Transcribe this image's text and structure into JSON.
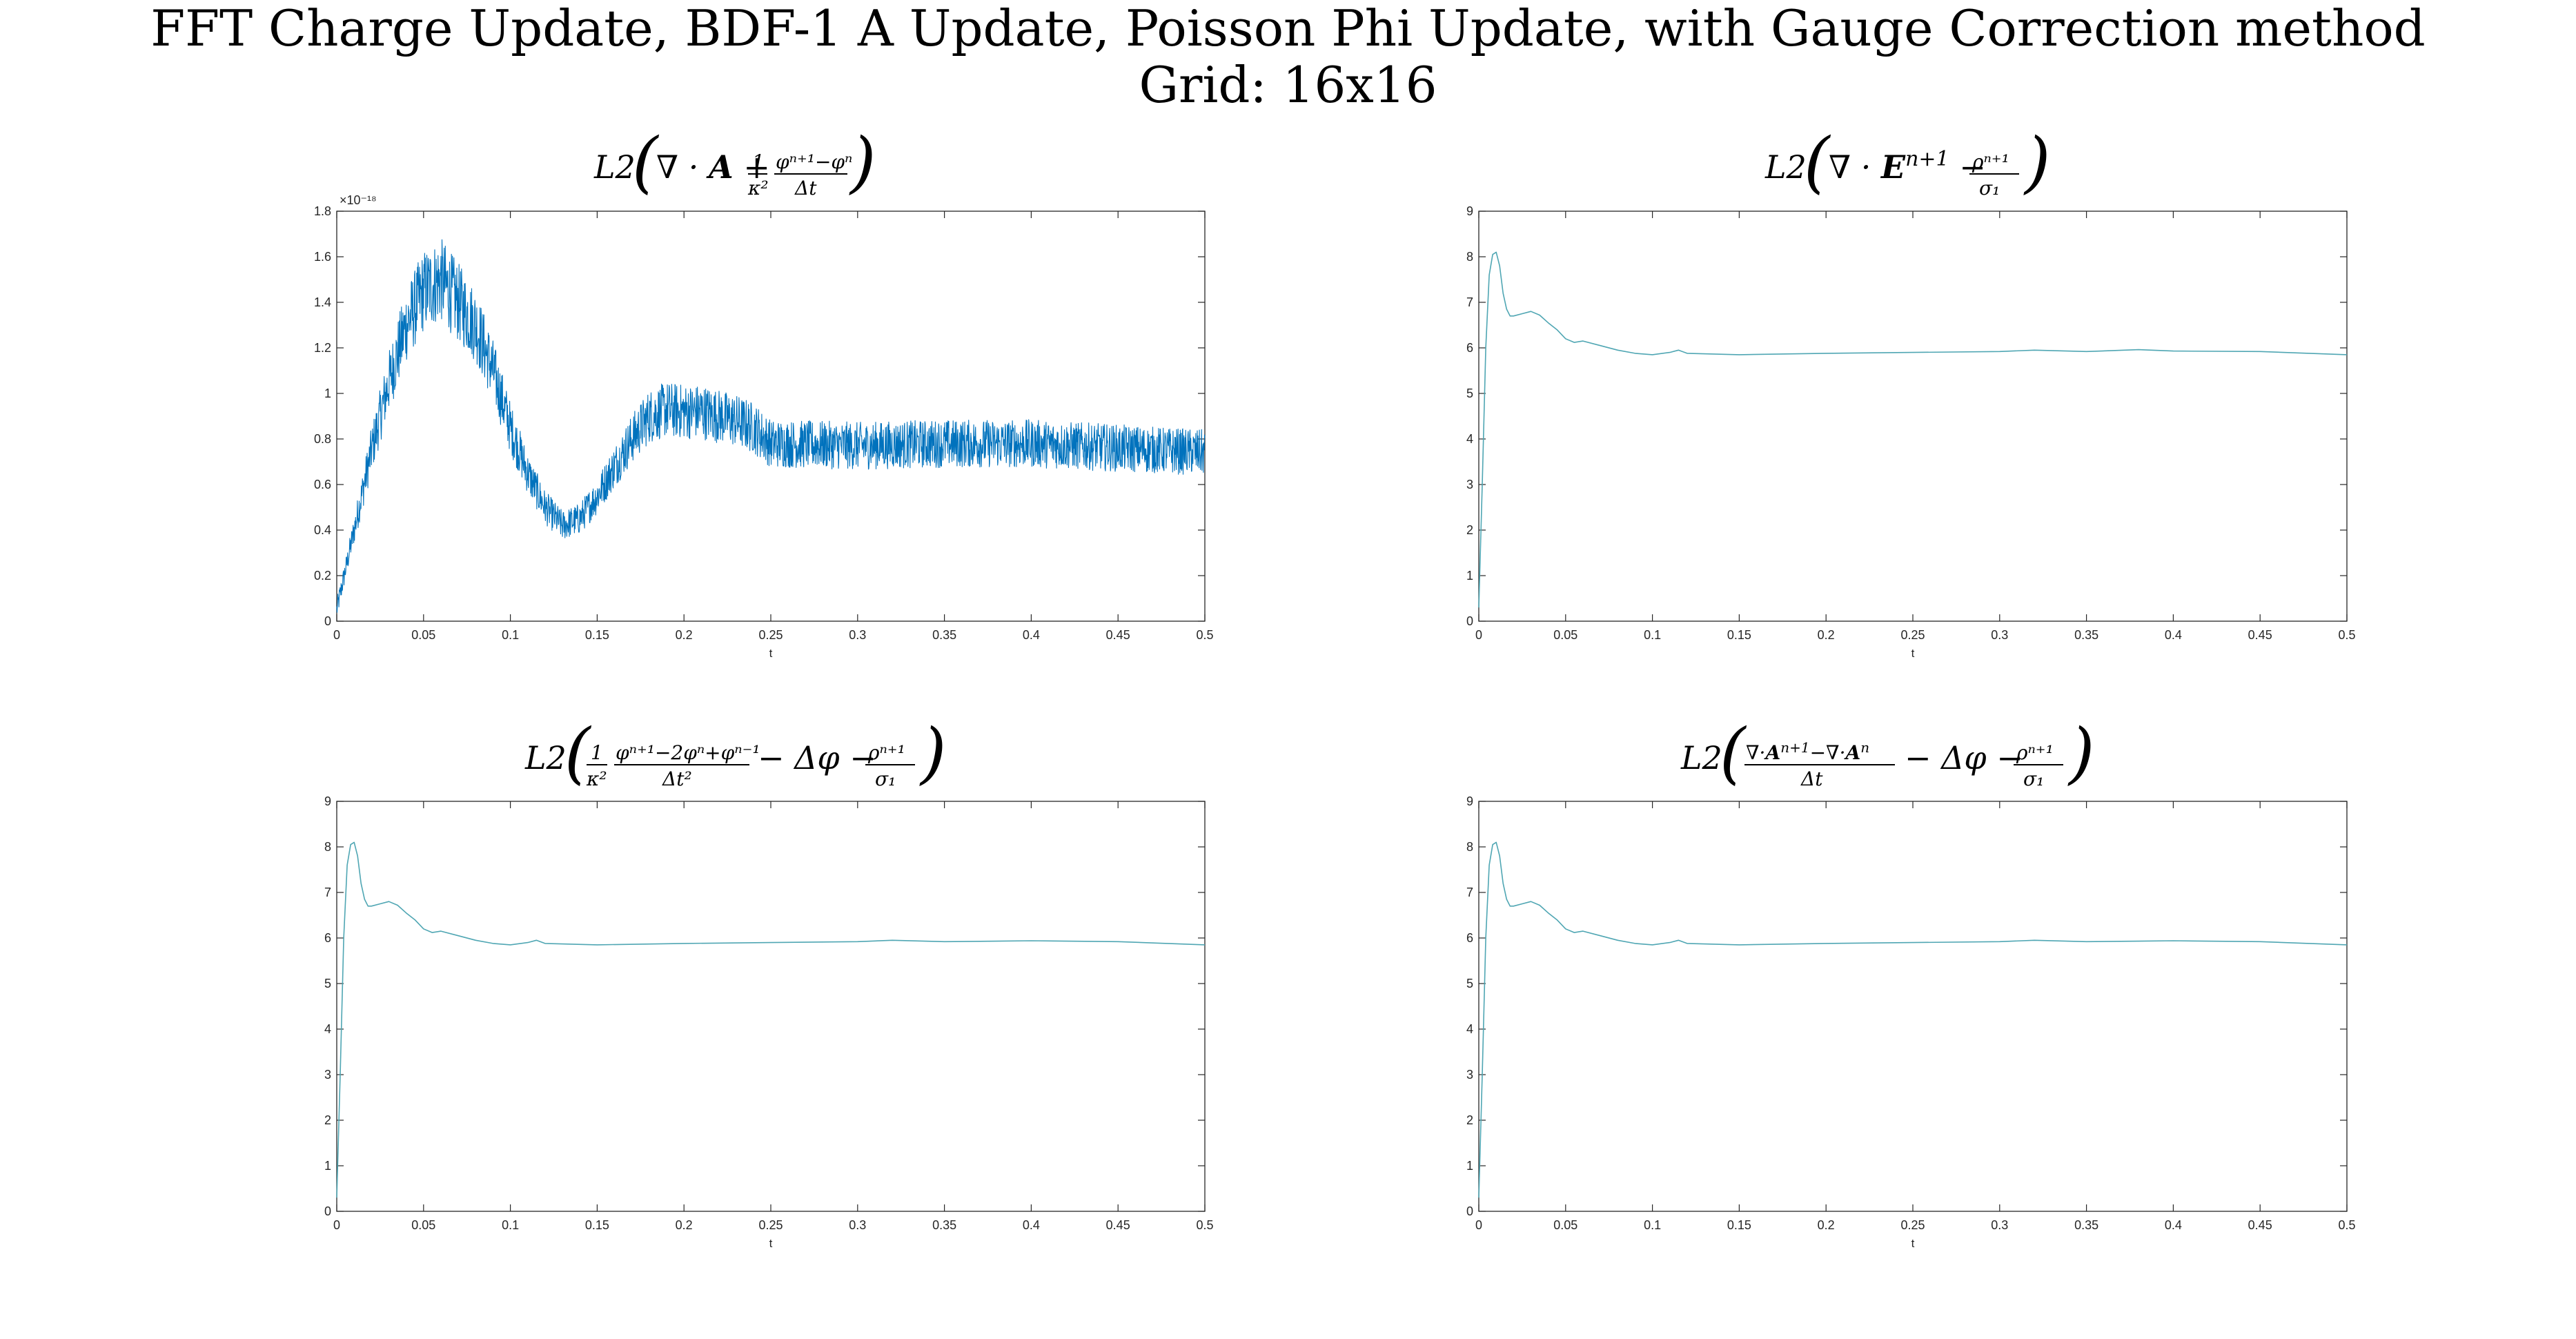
{
  "figure": {
    "title_line1": "FFT Charge Update, BDF-1 A Update, Poisson Phi Update, with Gauge Correction method",
    "title_line2": "Grid: 16x16"
  },
  "chart_data": [
    {
      "type": "line",
      "title": "L2(∇·A + (1/κ²)(φⁿ⁺¹ − φⁿ)/Δt)",
      "xlabel": "t",
      "ylabel": "",
      "xlim": [
        0,
        0.5
      ],
      "ylim": [
        0,
        1.8
      ],
      "xticks": [
        "0",
        "0.05",
        "0.1",
        "0.15",
        "0.2",
        "0.25",
        "0.3",
        "0.35",
        "0.4",
        "0.45",
        "0.5"
      ],
      "yticks": [
        "0",
        "0.2",
        "0.4",
        "0.6",
        "0.8",
        "1",
        "1.2",
        "1.4",
        "1.6",
        "1.8"
      ],
      "y_exponent_label": "×10⁻¹⁸",
      "grid": false,
      "line_color": "#0072BD",
      "noisy": true,
      "x": [
        0,
        0.01,
        0.02,
        0.03,
        0.04,
        0.05,
        0.06,
        0.07,
        0.08,
        0.09,
        0.1,
        0.11,
        0.12,
        0.13,
        0.14,
        0.15,
        0.16,
        0.17,
        0.18,
        0.19,
        0.2,
        0.21,
        0.22,
        0.23,
        0.24,
        0.25,
        0.3,
        0.35,
        0.4,
        0.45,
        0.5
      ],
      "y": [
        0.05,
        0.4,
        0.75,
        1.05,
        1.3,
        1.45,
        1.5,
        1.4,
        1.3,
        1.1,
        0.85,
        0.65,
        0.5,
        0.42,
        0.45,
        0.55,
        0.68,
        0.8,
        0.9,
        0.93,
        0.92,
        0.92,
        0.9,
        0.88,
        0.85,
        0.78,
        0.77,
        0.78,
        0.78,
        0.76,
        0.74
      ]
    },
    {
      "type": "line",
      "title": "L2(∇·Eⁿ⁺¹ − ρⁿ⁺¹/σ₁)",
      "xlabel": "t",
      "ylabel": "",
      "xlim": [
        0,
        0.5
      ],
      "ylim": [
        0,
        9
      ],
      "xticks": [
        "0",
        "0.05",
        "0.1",
        "0.15",
        "0.2",
        "0.25",
        "0.3",
        "0.35",
        "0.4",
        "0.45",
        "0.5"
      ],
      "yticks": [
        "0",
        "1",
        "2",
        "3",
        "4",
        "5",
        "6",
        "7",
        "8",
        "9"
      ],
      "grid": false,
      "line_color": "#4fa6b3",
      "noisy": false,
      "x": [
        0,
        0.002,
        0.004,
        0.006,
        0.008,
        0.01,
        0.012,
        0.014,
        0.016,
        0.018,
        0.02,
        0.025,
        0.03,
        0.035,
        0.04,
        0.045,
        0.05,
        0.055,
        0.06,
        0.07,
        0.08,
        0.09,
        0.1,
        0.11,
        0.115,
        0.12,
        0.15,
        0.2,
        0.25,
        0.3,
        0.32,
        0.35,
        0.38,
        0.4,
        0.45,
        0.5
      ],
      "y": [
        0.3,
        3.0,
        6.0,
        7.6,
        8.05,
        8.1,
        7.8,
        7.2,
        6.85,
        6.7,
        6.7,
        6.75,
        6.8,
        6.72,
        6.55,
        6.4,
        6.2,
        6.12,
        6.15,
        6.05,
        5.95,
        5.88,
        5.85,
        5.9,
        5.95,
        5.88,
        5.85,
        5.88,
        5.9,
        5.92,
        5.95,
        5.92,
        5.96,
        5.93,
        5.92,
        5.85
      ]
    },
    {
      "type": "line",
      "title": "L2((1/κ²)(φⁿ⁺¹ − 2φⁿ + φⁿ⁻¹)/Δt² − Δφ − ρⁿ⁺¹/σ₁)",
      "xlabel": "t",
      "ylabel": "",
      "xlim": [
        0,
        0.5
      ],
      "ylim": [
        0,
        9
      ],
      "xticks": [
        "0",
        "0.05",
        "0.1",
        "0.15",
        "0.2",
        "0.25",
        "0.3",
        "0.35",
        "0.4",
        "0.45",
        "0.5"
      ],
      "yticks": [
        "0",
        "1",
        "2",
        "3",
        "4",
        "5",
        "6",
        "7",
        "8",
        "9"
      ],
      "grid": false,
      "line_color": "#4fa6b3",
      "noisy": false,
      "x": [
        0,
        0.002,
        0.004,
        0.006,
        0.008,
        0.01,
        0.012,
        0.014,
        0.016,
        0.018,
        0.02,
        0.025,
        0.03,
        0.035,
        0.04,
        0.045,
        0.05,
        0.055,
        0.06,
        0.07,
        0.08,
        0.09,
        0.1,
        0.11,
        0.115,
        0.12,
        0.15,
        0.2,
        0.25,
        0.3,
        0.32,
        0.35,
        0.38,
        0.4,
        0.45,
        0.5
      ],
      "y": [
        0.3,
        3.0,
        6.0,
        7.6,
        8.05,
        8.1,
        7.8,
        7.2,
        6.85,
        6.7,
        6.7,
        6.75,
        6.8,
        6.72,
        6.55,
        6.4,
        6.2,
        6.12,
        6.15,
        6.05,
        5.95,
        5.88,
        5.85,
        5.9,
        5.95,
        5.88,
        5.85,
        5.88,
        5.9,
        5.92,
        5.95,
        5.92,
        5.93,
        5.94,
        5.92,
        5.85
      ]
    },
    {
      "type": "line",
      "title": "L2((∇·Aⁿ⁺¹ − ∇·Aⁿ)/Δt − Δφ − ρⁿ⁺¹/σ₁)",
      "xlabel": "t",
      "ylabel": "",
      "xlim": [
        0,
        0.5
      ],
      "ylim": [
        0,
        9
      ],
      "xticks": [
        "0",
        "0.05",
        "0.1",
        "0.15",
        "0.2",
        "0.25",
        "0.3",
        "0.35",
        "0.4",
        "0.45",
        "0.5"
      ],
      "yticks": [
        "0",
        "1",
        "2",
        "3",
        "4",
        "5",
        "6",
        "7",
        "8",
        "9"
      ],
      "grid": false,
      "line_color": "#4fa6b3",
      "noisy": false,
      "x": [
        0,
        0.002,
        0.004,
        0.006,
        0.008,
        0.01,
        0.012,
        0.014,
        0.016,
        0.018,
        0.02,
        0.025,
        0.03,
        0.035,
        0.04,
        0.045,
        0.05,
        0.055,
        0.06,
        0.07,
        0.08,
        0.09,
        0.1,
        0.11,
        0.115,
        0.12,
        0.15,
        0.2,
        0.25,
        0.3,
        0.32,
        0.35,
        0.38,
        0.4,
        0.45,
        0.5
      ],
      "y": [
        0.3,
        3.0,
        6.0,
        7.6,
        8.05,
        8.1,
        7.8,
        7.2,
        6.85,
        6.7,
        6.7,
        6.75,
        6.8,
        6.72,
        6.55,
        6.4,
        6.2,
        6.12,
        6.15,
        6.05,
        5.95,
        5.88,
        5.85,
        5.9,
        5.95,
        5.88,
        5.85,
        5.88,
        5.9,
        5.92,
        5.95,
        5.92,
        5.93,
        5.94,
        5.92,
        5.85
      ]
    }
  ]
}
